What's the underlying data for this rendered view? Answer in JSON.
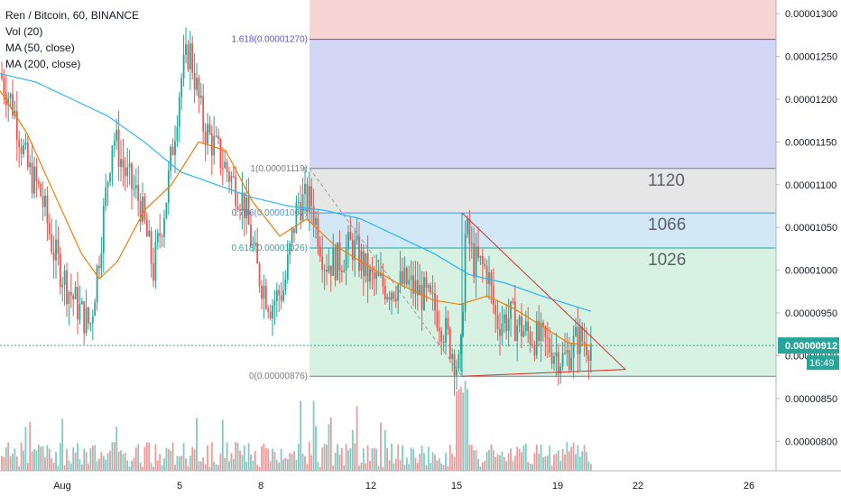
{
  "chart_data": {
    "type": "candlestick",
    "title": "Ren / Bitcoin, 60, BINANCE",
    "indicators": [
      "Vol (20)",
      "MA (50, close)",
      "MA (200, close)"
    ],
    "x_ticks": [
      "Aug",
      "5",
      "8",
      "12",
      "15",
      "19",
      "22",
      "26"
    ],
    "y_ticks": [
      "0.00001300",
      "0.00001250",
      "0.00001200",
      "0.00001150",
      "0.00001100",
      "0.00001050",
      "0.00001000",
      "0.00000950",
      "0.00000900",
      "0.00000850",
      "0.00000800",
      "0.00000750"
    ],
    "ylim": [
      7.36e-06,
      1.316e-05
    ],
    "last_price": "0.00000912",
    "last_price_value": 9.12e-06,
    "countdown": "16:49",
    "fib_levels": [
      {
        "label": "1.618(0.00001270)",
        "value": 1.27e-05,
        "color": "#5b4fd6"
      },
      {
        "label": "1(0.00001119)",
        "value": 1.119e-05,
        "color": "#787b86"
      },
      {
        "label": "0.786(0.00001067)",
        "value": 1.067e-05,
        "color": "#4a90d9"
      },
      {
        "label": "0.618(0.00001026)",
        "value": 1.026e-05,
        "color": "#26a69a"
      },
      {
        "label": "0(0.00000876)",
        "value": 8.76e-06,
        "color": "#787b86"
      }
    ],
    "annotations": [
      "1120",
      "1066",
      "1026"
    ],
    "colors": {
      "up": "#26a69a",
      "down": "#ef5350",
      "ma50": "#f57c00",
      "ma200": "#29b6f6",
      "triangle": "#d32f2f",
      "grid": "#e0e3eb"
    },
    "grid": false,
    "legend_position": "top-left"
  }
}
